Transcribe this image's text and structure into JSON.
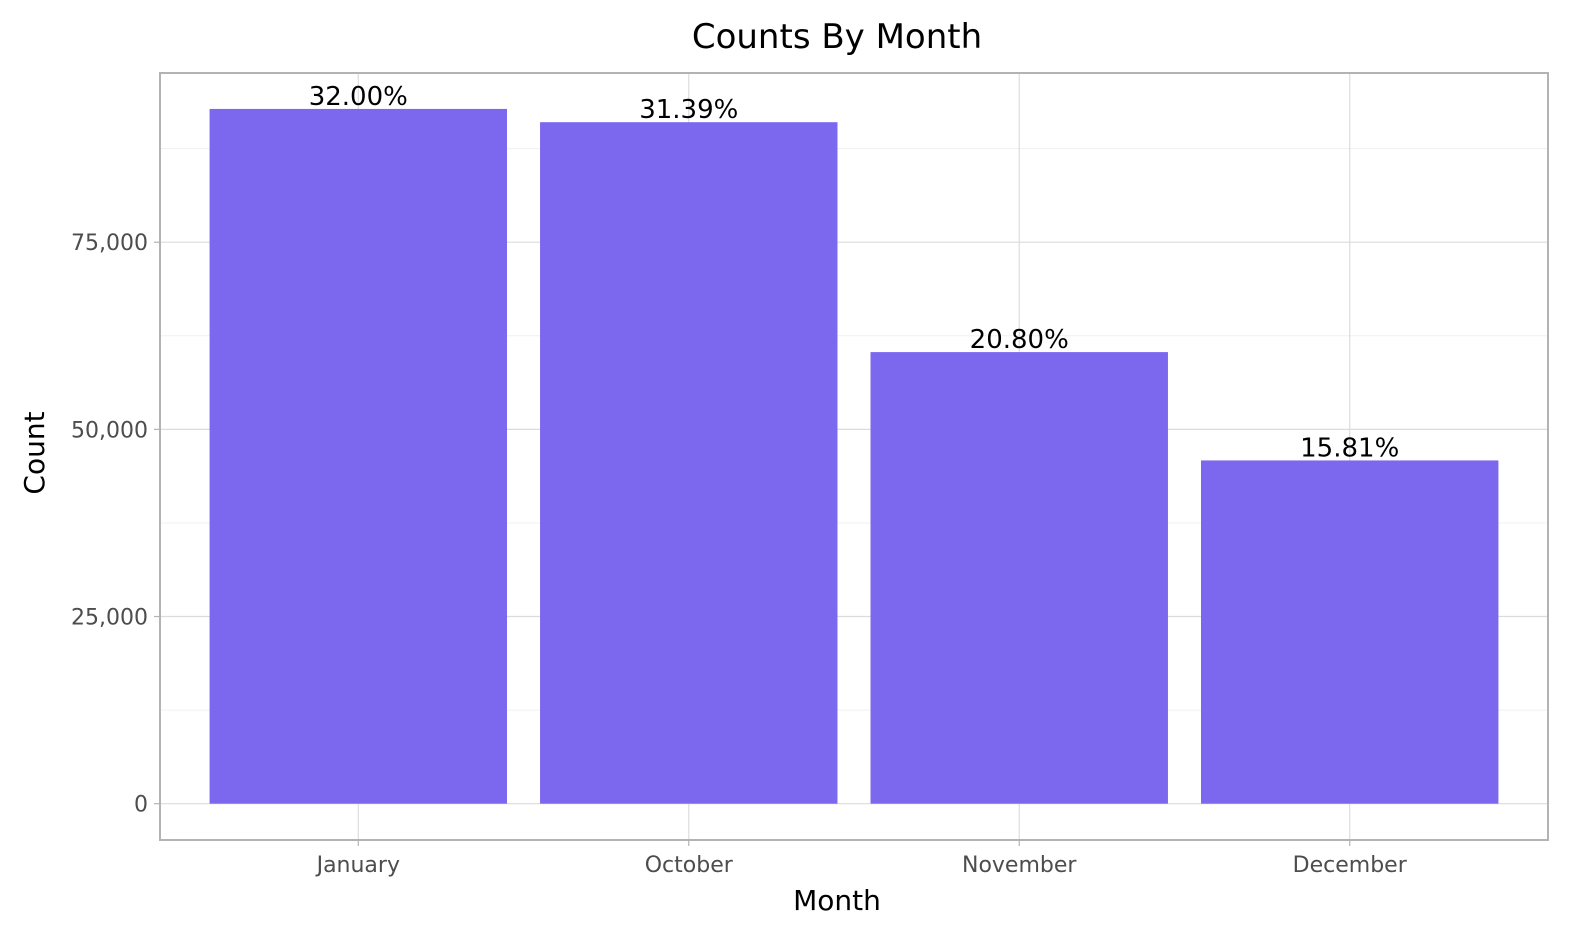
{
  "chart_data": {
    "type": "bar",
    "title": "Counts By Month",
    "xlabel": "Month",
    "ylabel": "Count",
    "categories": [
      "January",
      "October",
      "November",
      "December"
    ],
    "values": [
      92800,
      91030,
      60320,
      45850
    ],
    "data_labels": [
      "32.00%",
      "31.39%",
      "20.80%",
      "15.81%"
    ],
    "ylim": [
      -4850,
      97600
    ],
    "y_ticks": [
      0,
      25000,
      50000,
      75000
    ],
    "y_tick_labels": [
      "0",
      "25,000",
      "50,000",
      "75,000"
    ],
    "y_minor_ticks": [
      12500,
      37500,
      62500,
      87500
    ],
    "grid": true,
    "bar_color": "#7b68ee"
  }
}
